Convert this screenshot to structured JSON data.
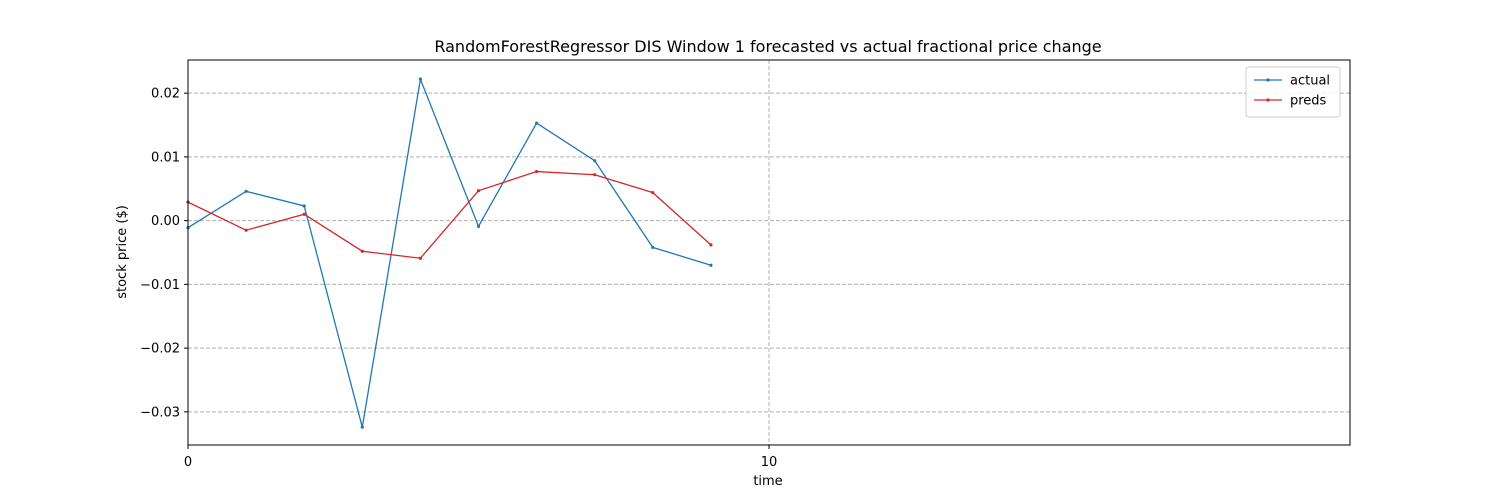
{
  "chart_data": {
    "type": "line",
    "title": "RandomForestRegressor DIS Window 1 forecasted vs actual fractional price change",
    "xlabel": "time",
    "ylabel": "stock price ($)",
    "xlim": [
      0,
      20
    ],
    "ylim": [
      -0.0352,
      0.0252
    ],
    "xticks": [
      0,
      10
    ],
    "yticks": [
      -0.03,
      -0.02,
      -0.01,
      0.0,
      0.01,
      0.02
    ],
    "ytick_labels": [
      "−0.03",
      "−0.02",
      "−0.01",
      "0.00",
      "0.01",
      "0.02"
    ],
    "xtick_labels": [
      "0",
      "10"
    ],
    "grid": true,
    "legend_position": "top-right",
    "x": [
      0,
      1,
      2,
      3,
      4,
      5,
      6,
      7,
      8,
      9
    ],
    "series": [
      {
        "name": "actual",
        "color": "#1f77b4",
        "values": [
          -0.0011,
          0.0046,
          0.0023,
          -0.0324,
          0.0222,
          -0.0009,
          0.0153,
          0.0094,
          -0.0042,
          -0.007
        ]
      },
      {
        "name": "preds",
        "color": "#d62728",
        "values": [
          0.0029,
          -0.0015,
          0.001,
          -0.0048,
          -0.0059,
          0.0047,
          0.0077,
          0.0072,
          0.0044,
          -0.0038
        ]
      }
    ]
  }
}
